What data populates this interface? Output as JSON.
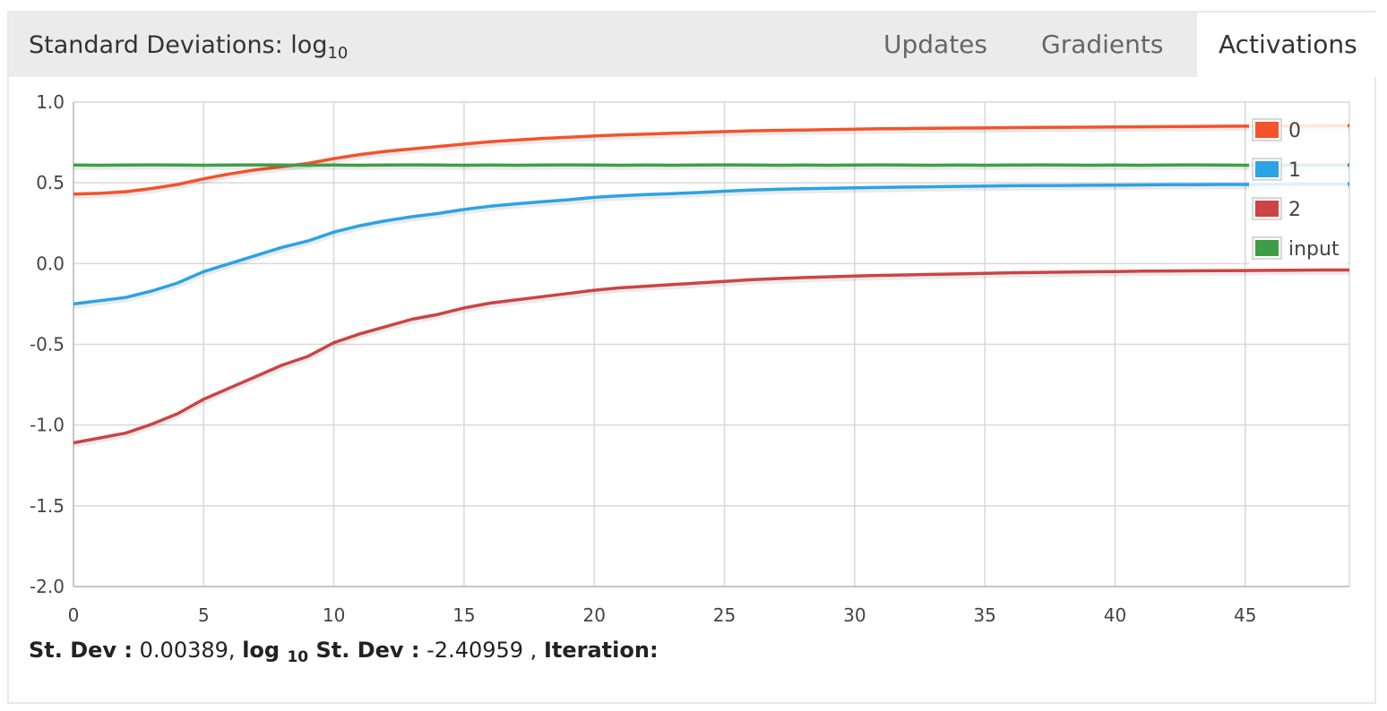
{
  "header": {
    "title": "Standard Deviations: log",
    "title_sub": "10",
    "tabs": [
      {
        "label": "Updates",
        "active": false
      },
      {
        "label": "Gradients",
        "active": false
      },
      {
        "label": "Activations",
        "active": true
      }
    ]
  },
  "footer": {
    "stdev_label": "St. Dev :",
    "stdev_value": " 0.00389,",
    "log_label": "log",
    "log_sub": "10",
    "log_label2": "St. Dev :",
    "log_value": " -2.40959 ,",
    "iteration_label": "Iteration:"
  },
  "chart_data": {
    "type": "line",
    "xlim": [
      0,
      49
    ],
    "ylim": [
      -2.0,
      1.0
    ],
    "x_ticks": [
      0,
      5,
      10,
      15,
      20,
      25,
      30,
      35,
      40,
      45
    ],
    "y_ticks": [
      -2.0,
      -1.5,
      -1.0,
      -0.5,
      0.0,
      0.5,
      1.0
    ],
    "y_tick_labels": [
      "-2.0",
      "-1.5",
      "-1.0",
      "-0.5",
      "0.0",
      "0.5",
      "1.0"
    ],
    "grid": true,
    "legend_position": "top-right",
    "series": [
      {
        "name": "0",
        "color": "#f4532b",
        "values": [
          0.43,
          0.435,
          0.445,
          0.465,
          0.49,
          0.525,
          0.555,
          0.58,
          0.6,
          0.62,
          0.65,
          0.675,
          0.695,
          0.71,
          0.725,
          0.74,
          0.755,
          0.765,
          0.775,
          0.782,
          0.79,
          0.797,
          0.802,
          0.807,
          0.812,
          0.817,
          0.822,
          0.825,
          0.827,
          0.83,
          0.832,
          0.835,
          0.836,
          0.838,
          0.839,
          0.84,
          0.842,
          0.843,
          0.844,
          0.845,
          0.846,
          0.847,
          0.848,
          0.849,
          0.85,
          0.851,
          0.851,
          0.852,
          0.853,
          0.854
        ]
      },
      {
        "name": "1",
        "color": "#2ba3e5",
        "values": [
          -0.25,
          -0.23,
          -0.21,
          -0.17,
          -0.12,
          -0.05,
          0.0,
          0.05,
          0.1,
          0.14,
          0.195,
          0.235,
          0.265,
          0.29,
          0.31,
          0.335,
          0.355,
          0.37,
          0.383,
          0.395,
          0.41,
          0.42,
          0.427,
          0.433,
          0.44,
          0.448,
          0.455,
          0.46,
          0.463,
          0.466,
          0.469,
          0.472,
          0.474,
          0.476,
          0.478,
          0.48,
          0.482,
          0.483,
          0.484,
          0.485,
          0.486,
          0.487,
          0.488,
          0.489,
          0.49,
          0.49,
          0.491,
          0.492,
          0.492,
          0.493
        ]
      },
      {
        "name": "2",
        "color": "#cc4444",
        "values": [
          -1.11,
          -1.08,
          -1.05,
          -0.995,
          -0.93,
          -0.84,
          -0.77,
          -0.7,
          -0.63,
          -0.575,
          -0.49,
          -0.435,
          -0.39,
          -0.345,
          -0.315,
          -0.275,
          -0.245,
          -0.225,
          -0.205,
          -0.185,
          -0.165,
          -0.15,
          -0.14,
          -0.13,
          -0.12,
          -0.11,
          -0.1,
          -0.093,
          -0.087,
          -0.082,
          -0.077,
          -0.073,
          -0.07,
          -0.067,
          -0.064,
          -0.06,
          -0.057,
          -0.055,
          -0.053,
          -0.051,
          -0.049,
          -0.047,
          -0.046,
          -0.045,
          -0.044,
          -0.043,
          -0.042,
          -0.041,
          -0.04,
          -0.04
        ]
      },
      {
        "name": "input",
        "color": "#3d9e46",
        "values": [
          0.61,
          0.609,
          0.61,
          0.611,
          0.61,
          0.609,
          0.61,
          0.611,
          0.61,
          0.609,
          0.61,
          0.609,
          0.61,
          0.611,
          0.61,
          0.609,
          0.61,
          0.609,
          0.61,
          0.611,
          0.61,
          0.609,
          0.61,
          0.609,
          0.61,
          0.611,
          0.61,
          0.609,
          0.61,
          0.609,
          0.61,
          0.611,
          0.61,
          0.609,
          0.61,
          0.609,
          0.61,
          0.611,
          0.61,
          0.609,
          0.61,
          0.609,
          0.61,
          0.611,
          0.61,
          0.609,
          0.61,
          0.609,
          0.61,
          0.61
        ]
      }
    ]
  }
}
